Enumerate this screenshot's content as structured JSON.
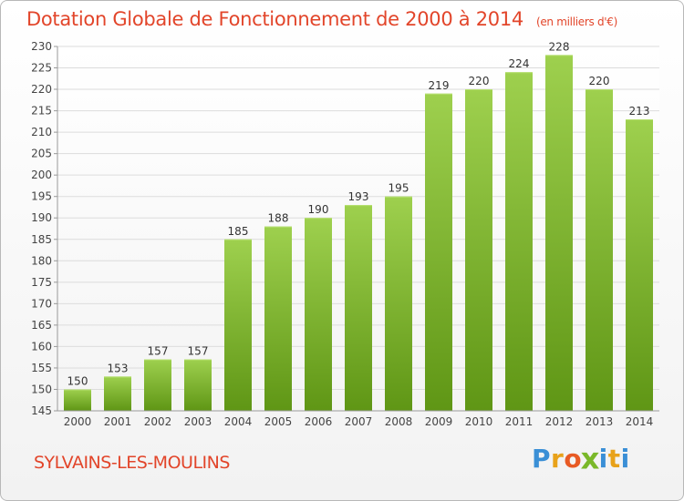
{
  "chart_data": {
    "type": "bar",
    "title": "Dotation Globale de Fonctionnement de 2000 à 2014",
    "subtitle": "(en milliers d'€)",
    "categories": [
      "2000",
      "2001",
      "2002",
      "2003",
      "2004",
      "2005",
      "2006",
      "2007",
      "2008",
      "2009",
      "2010",
      "2011",
      "2012",
      "2013",
      "2014"
    ],
    "values": [
      150,
      153,
      157,
      157,
      185,
      188,
      190,
      193,
      195,
      219,
      220,
      224,
      228,
      220,
      213
    ],
    "ylim": [
      145,
      230
    ],
    "yticks": [
      145,
      150,
      155,
      160,
      165,
      170,
      175,
      180,
      185,
      190,
      195,
      200,
      205,
      210,
      215,
      220,
      225,
      230
    ],
    "grid": true,
    "bar_color_top": "#9ed04e",
    "bar_color_bottom": "#5f9615"
  },
  "footer": {
    "commune": "SYLVAINS-LES-MOULINS",
    "logo": {
      "letters": [
        "P",
        "r",
        "o",
        "x",
        "i",
        "t",
        "i"
      ],
      "colors": [
        "#3a8fd6",
        "#e8a21a",
        "#e85a24",
        "#7ab829",
        "#3a8fd6",
        "#e8a21a",
        "#3a8fd6"
      ]
    }
  }
}
